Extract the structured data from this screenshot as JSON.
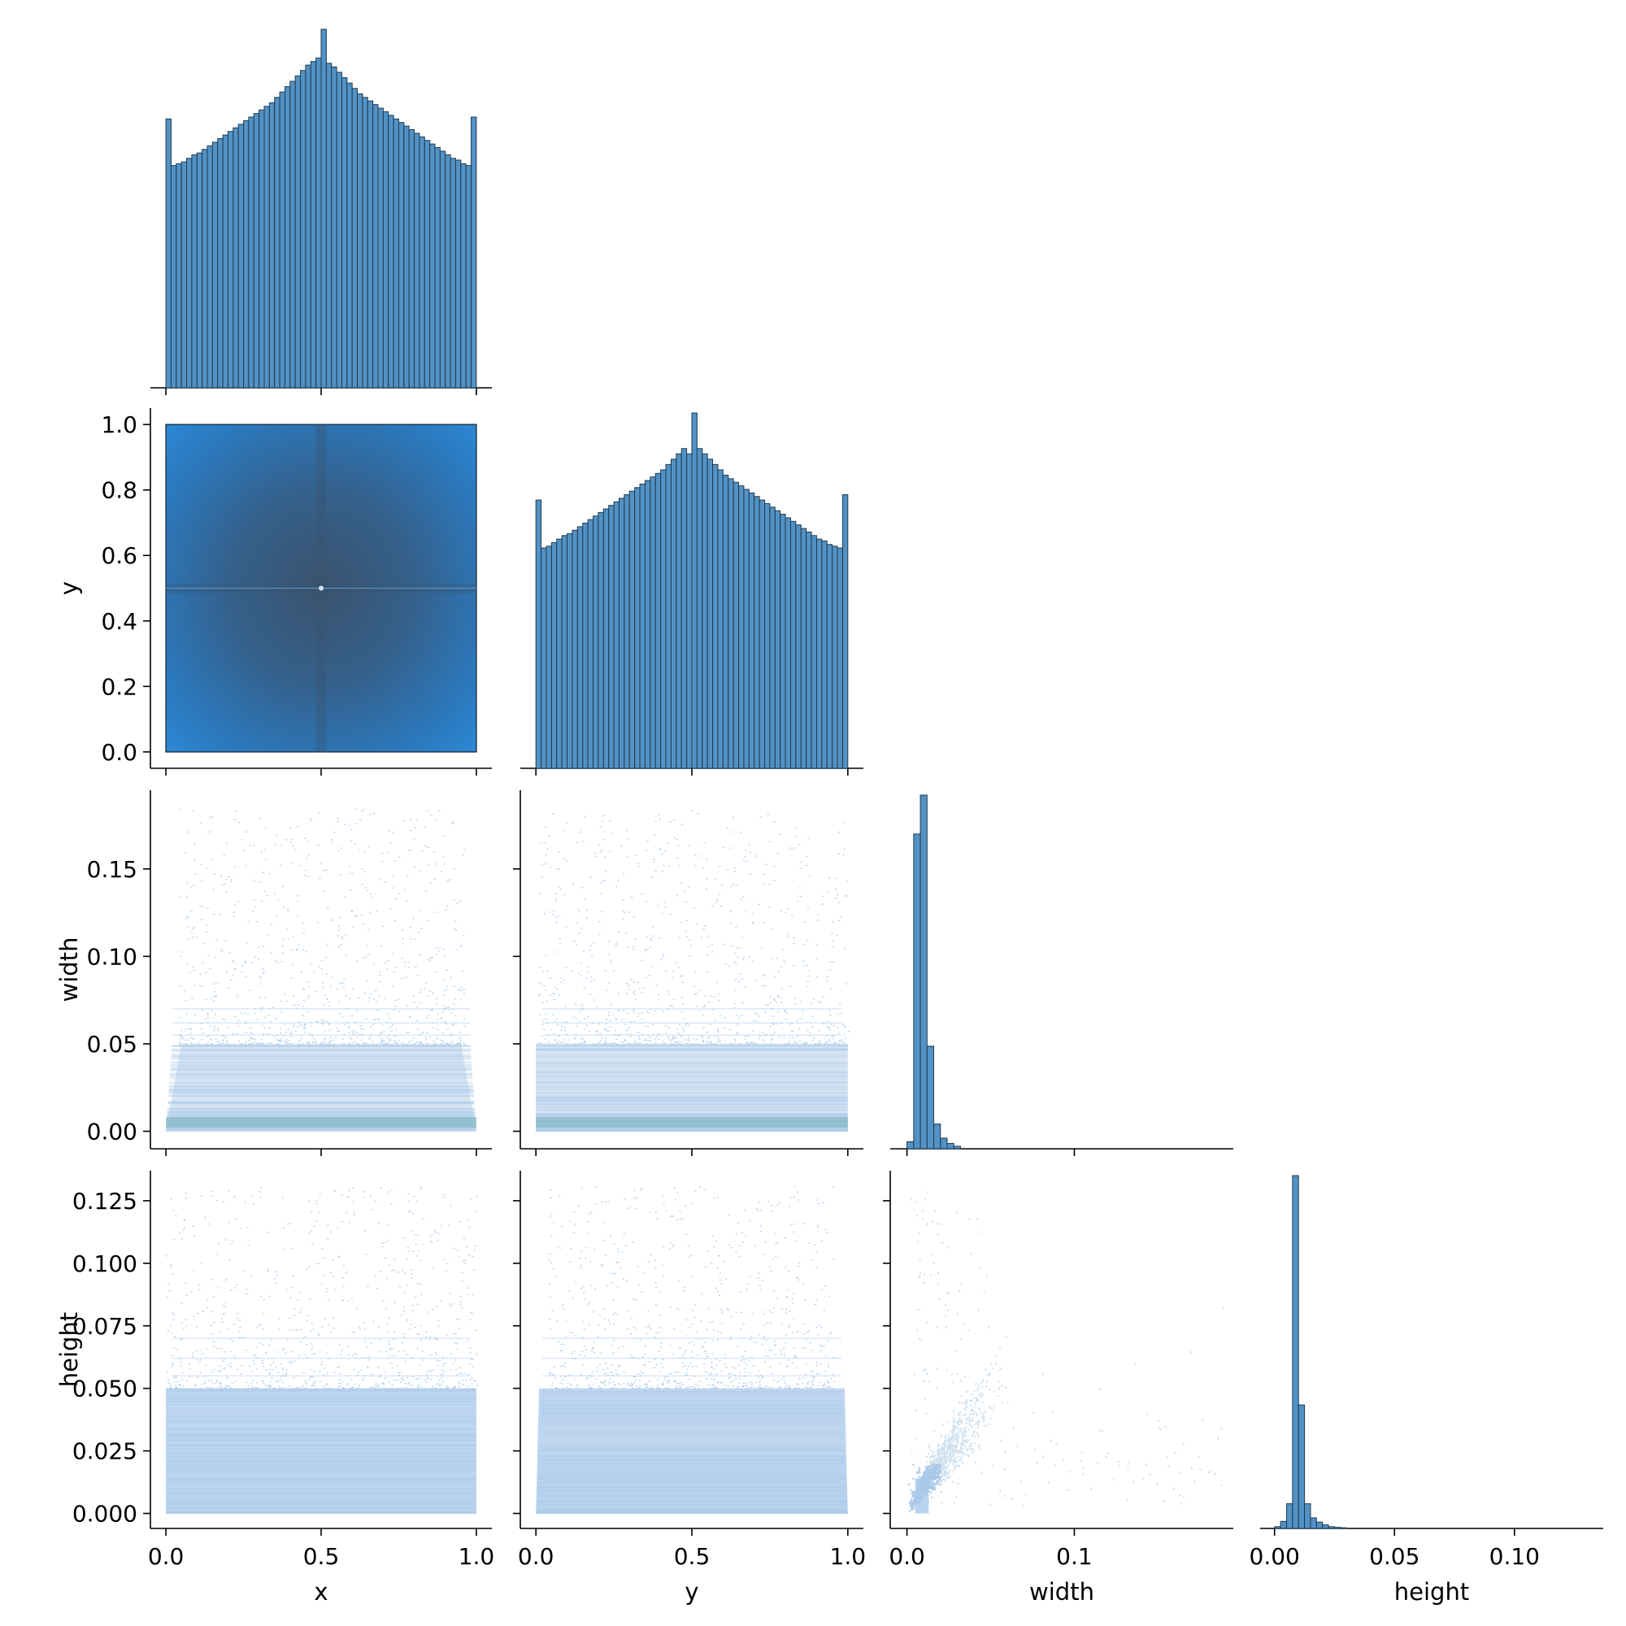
{
  "chart_data": {
    "type": "pairplot",
    "variables": [
      "x",
      "y",
      "width",
      "height"
    ],
    "colors": {
      "hist_fill": "#5292c5",
      "hist_edge": "#1f3a50",
      "hexbin_bright": "#2d8ad6",
      "hexbin_dark": "#3a536e",
      "scatter_light": "#a9c8ea",
      "scatter_pale": "#cfe0ef",
      "scatter_teal": "#7fb3c2"
    },
    "axis_labels": {
      "x": "x",
      "y": "y",
      "width": "width",
      "height": "height"
    },
    "ticks": {
      "x": {
        "values": [
          0.0,
          0.5,
          1.0
        ],
        "labels": [
          "0.0",
          "0.5",
          "1.0"
        ],
        "range": [
          -0.05,
          1.05
        ]
      },
      "y": {
        "values": [
          0.0,
          0.2,
          0.4,
          0.6,
          0.8,
          1.0
        ],
        "labels": [
          "0.0",
          "0.2",
          "0.4",
          "0.6",
          "0.8",
          "1.0"
        ],
        "range": [
          -0.05,
          1.05
        ]
      },
      "y_bottom": {
        "values": [
          0.0,
          0.5,
          1.0
        ],
        "labels": [
          "0.0",
          "0.5",
          "1.0"
        ],
        "range": [
          -0.05,
          1.05
        ]
      },
      "width": {
        "values": [
          0.0,
          0.05,
          0.1,
          0.15
        ],
        "labels": [
          "0.00",
          "0.05",
          "0.10",
          "0.15"
        ],
        "range": [
          -0.01,
          0.195
        ]
      },
      "width_bottom": {
        "values": [
          0.0,
          0.1
        ],
        "labels": [
          "0.0",
          "0.1"
        ],
        "range": [
          -0.01,
          0.195
        ]
      },
      "height": {
        "values": [
          0.0,
          0.025,
          0.05,
          0.075,
          0.1,
          0.125
        ],
        "labels": [
          "0.000",
          "0.025",
          "0.050",
          "0.075",
          "0.100",
          "0.125"
        ],
        "range": [
          -0.006,
          0.137
        ]
      },
      "height_bottom": {
        "values": [
          0.0,
          0.05,
          0.1
        ],
        "labels": [
          "0.00",
          "0.05",
          "0.10"
        ],
        "range": [
          -0.006,
          0.137
        ]
      }
    },
    "histograms": {
      "x": {
        "bins": 60,
        "range": [
          0,
          1
        ],
        "counts": [
          0.75,
          0.62,
          0.625,
          0.63,
          0.64,
          0.65,
          0.655,
          0.665,
          0.675,
          0.685,
          0.695,
          0.705,
          0.715,
          0.725,
          0.735,
          0.745,
          0.755,
          0.765,
          0.775,
          0.785,
          0.795,
          0.81,
          0.825,
          0.84,
          0.855,
          0.87,
          0.885,
          0.9,
          0.91,
          0.92,
          1.0,
          0.905,
          0.895,
          0.88,
          0.865,
          0.85,
          0.835,
          0.82,
          0.81,
          0.8,
          0.79,
          0.78,
          0.77,
          0.76,
          0.75,
          0.74,
          0.73,
          0.72,
          0.71,
          0.7,
          0.69,
          0.68,
          0.67,
          0.66,
          0.65,
          0.64,
          0.635,
          0.625,
          0.62,
          0.755
        ]
      },
      "y": {
        "bins": 60,
        "range": [
          0,
          1
        ],
        "counts": [
          0.755,
          0.62,
          0.625,
          0.635,
          0.645,
          0.655,
          0.66,
          0.67,
          0.68,
          0.69,
          0.7,
          0.71,
          0.72,
          0.73,
          0.74,
          0.75,
          0.76,
          0.77,
          0.78,
          0.79,
          0.8,
          0.81,
          0.82,
          0.83,
          0.84,
          0.855,
          0.87,
          0.885,
          0.9,
          0.885,
          1.0,
          0.9,
          0.885,
          0.87,
          0.855,
          0.84,
          0.825,
          0.815,
          0.805,
          0.795,
          0.785,
          0.775,
          0.765,
          0.755,
          0.745,
          0.735,
          0.725,
          0.715,
          0.705,
          0.695,
          0.685,
          0.675,
          0.665,
          0.655,
          0.645,
          0.64,
          0.63,
          0.625,
          0.62,
          0.77
        ]
      },
      "width": {
        "bin_edges": [
          0.0,
          0.004,
          0.008,
          0.012,
          0.016,
          0.02,
          0.024,
          0.028,
          0.032
        ],
        "counts": [
          0.02,
          0.89,
          1.0,
          0.29,
          0.07,
          0.03,
          0.015,
          0.007
        ]
      },
      "height": {
        "bin_edges": [
          0.0,
          0.0025,
          0.005,
          0.0075,
          0.01,
          0.0125,
          0.015,
          0.0175,
          0.02,
          0.0225,
          0.025,
          0.0275,
          0.03
        ],
        "counts": [
          0.005,
          0.02,
          0.07,
          1.0,
          0.35,
          0.07,
          0.03,
          0.018,
          0.01,
          0.005,
          0.003,
          0.002
        ]
      }
    },
    "scatter_summary": {
      "y_vs_x": {
        "style": "dense",
        "x_range": [
          0,
          1
        ],
        "y_range": [
          0,
          1
        ],
        "center": [
          0.5,
          0.5
        ]
      },
      "width_vs_x": {
        "style": "banded",
        "y_max": 0.185,
        "dense_below": 0.05
      },
      "width_vs_y": {
        "style": "banded",
        "y_max": 0.185,
        "dense_below": 0.05
      },
      "height_vs_x": {
        "style": "banded",
        "y_max": 0.131,
        "dense_below": 0.05
      },
      "height_vs_y": {
        "style": "banded",
        "y_max": 0.131,
        "dense_below": 0.05
      },
      "height_vs_width": {
        "style": "correlated",
        "x_max": 0.19,
        "y_max": 0.13
      }
    }
  }
}
